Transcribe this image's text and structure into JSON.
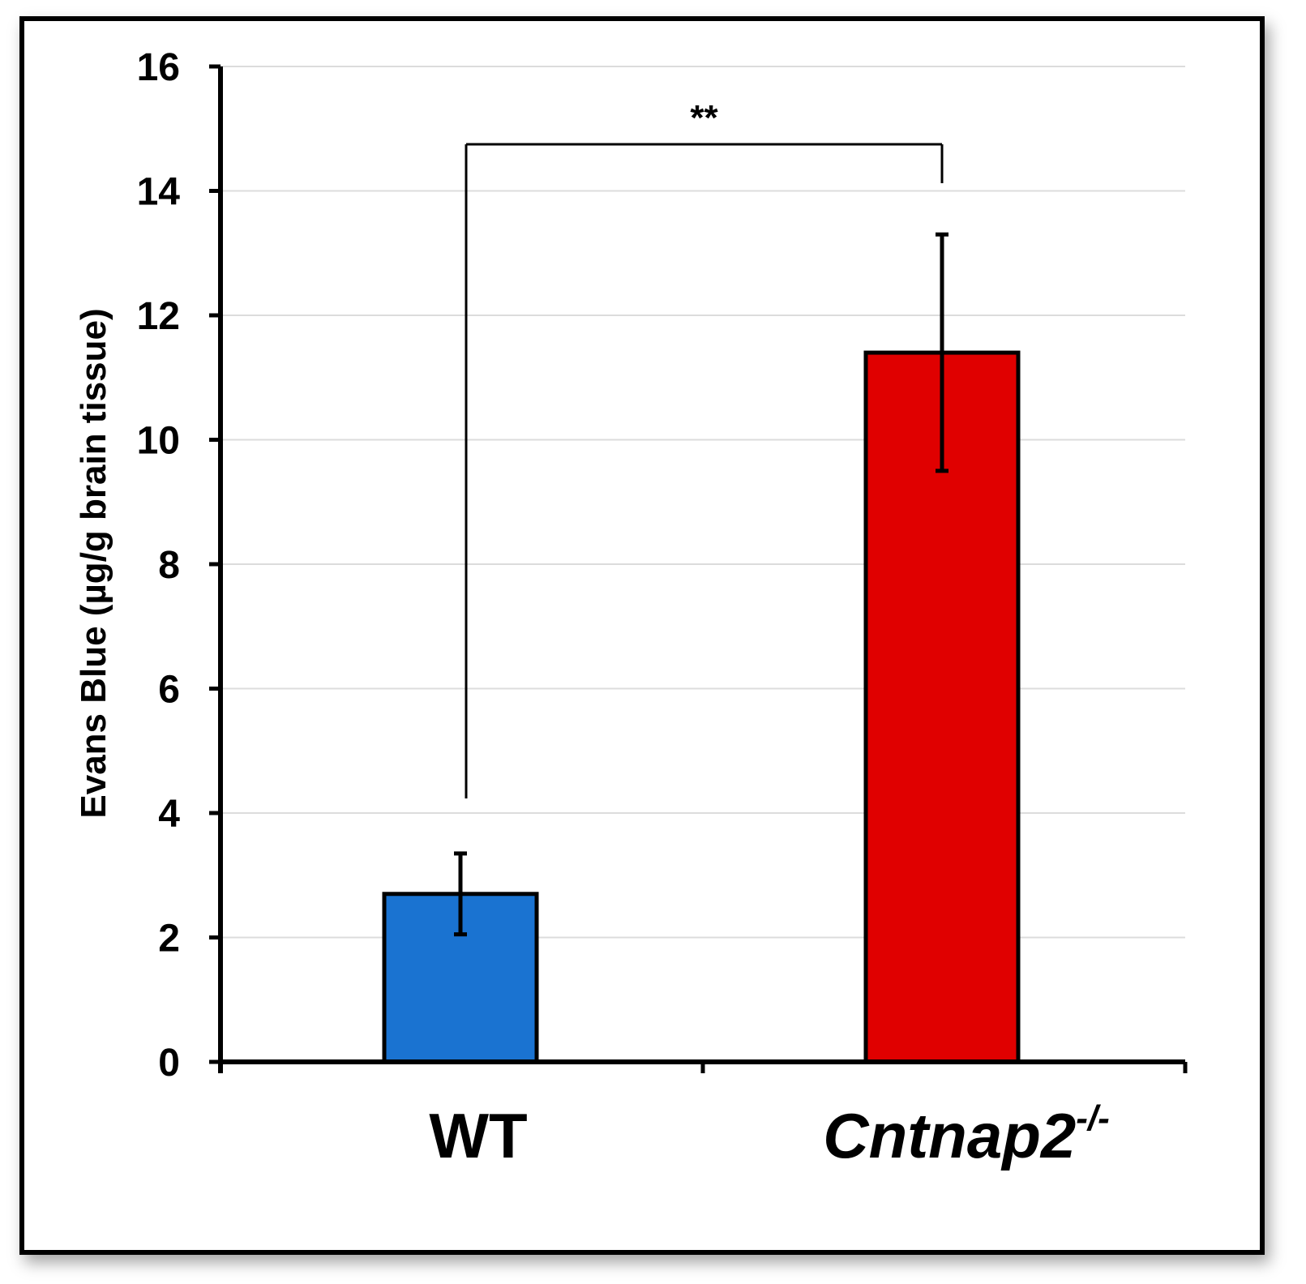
{
  "chart_data": {
    "type": "bar",
    "title": "",
    "xlabel": "",
    "ylabel": "Evans Blue (µg/g brain tissue)",
    "ylim": [
      0,
      16
    ],
    "yticks": [
      0,
      2,
      4,
      6,
      8,
      10,
      12,
      14,
      16
    ],
    "grid": true,
    "categories": [
      {
        "label": "WT",
        "superscript": "",
        "italic": false
      },
      {
        "label": "Cntnap2",
        "superscript": "-/-",
        "italic": true
      }
    ],
    "values": [
      2.7,
      11.4
    ],
    "errors": [
      0.65,
      1.9
    ],
    "colors": [
      "#1a73d1",
      "#e00000"
    ],
    "significance": {
      "between": [
        0,
        1
      ],
      "label": "**"
    }
  }
}
